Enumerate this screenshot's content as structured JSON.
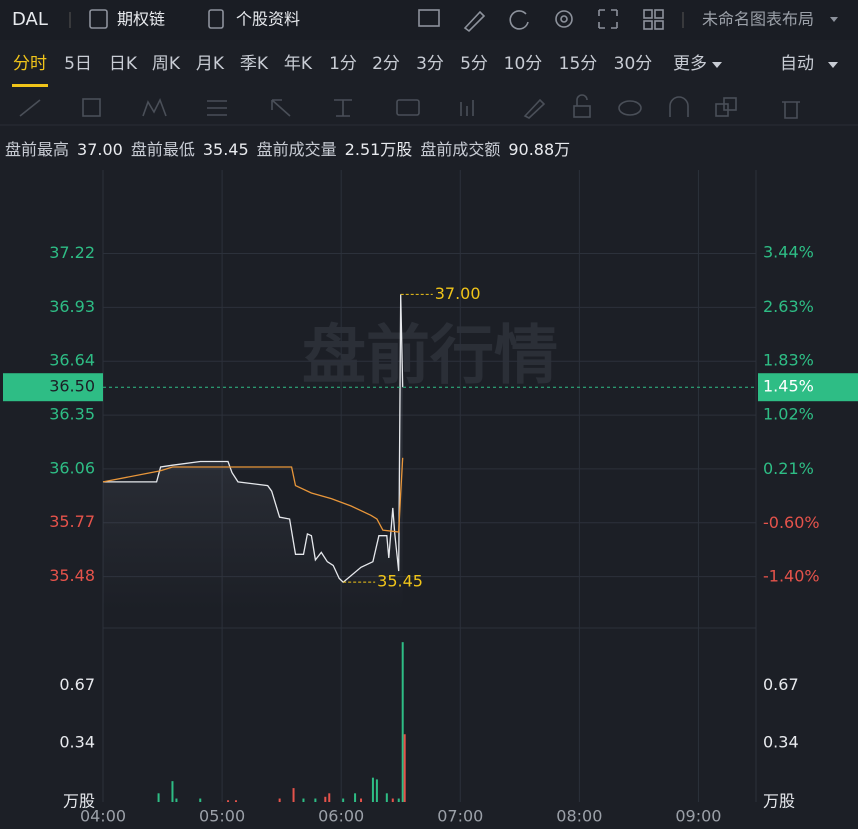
{
  "header": {
    "symbol": "DAL",
    "links": [
      "期权链",
      "个股资料"
    ],
    "layout_name": "未命名图表布局"
  },
  "tabs": {
    "items": [
      "分时",
      "5日",
      "日K",
      "周K",
      "月K",
      "季K",
      "年K",
      "1分",
      "2分",
      "3分",
      "5分",
      "10分",
      "15分",
      "30分",
      "更多"
    ],
    "active": 0,
    "mode": "自动"
  },
  "stats": [
    {
      "label": "盘前最高",
      "value": "37.00"
    },
    {
      "label": "盘前最低",
      "value": "35.45"
    },
    {
      "label": "盘前成交量",
      "value": "2.51万股"
    },
    {
      "label": "盘前成交额",
      "value": "90.88万"
    }
  ],
  "chart": {
    "watermark": "盘前行情",
    "xlim": [
      "04:00",
      "09:29"
    ],
    "xticks": [
      "04:00",
      "05:00",
      "06:00",
      "07:00",
      "08:00",
      "09:00"
    ],
    "ylim": [
      35.3,
      37.67
    ],
    "yticks": [
      37.22,
      36.93,
      36.64,
      36.35,
      36.06,
      35.77,
      35.48
    ],
    "y2lim": [
      -1.89,
      4.68
    ],
    "y2ticks": [
      {
        "value": 3.44,
        "label": "3.44%"
      },
      {
        "value": 2.63,
        "label": "2.63%"
      },
      {
        "value": 1.83,
        "label": "1.83%"
      },
      {
        "value": 1.02,
        "label": "1.02%"
      },
      {
        "value": 0.21,
        "label": "0.21%"
      },
      {
        "value": -0.6,
        "label": "-0.60%"
      },
      {
        "value": -1.4,
        "label": "-1.40%"
      }
    ],
    "grid": true,
    "up_color": "#2ebd85",
    "down_color": "#e5534b",
    "current": {
      "value": 36.5,
      "label": "36.50",
      "change": {
        "value": 1.45,
        "label": "1.45%"
      }
    },
    "series": [
      {
        "color": "#e6e8ec",
        "x": [
          "04:00",
          "04:27",
          "04:29",
          "04:35",
          "04:49",
          "05:03",
          "05:05",
          "05:08",
          "05:23",
          "05:25",
          "05:29",
          "05:34",
          "05:37",
          "05:41",
          "05:43",
          "05:45",
          "05:47",
          "05:50",
          "05:53",
          "05:56",
          "05:59",
          "06:01",
          "06:10",
          "06:16",
          "06:19",
          "06:23",
          "06:24",
          "06:26",
          "06:27",
          "06:29",
          "06:30",
          "06:31"
        ],
        "values": [
          35.99,
          35.99,
          36.07,
          36.08,
          36.1,
          36.1,
          36.04,
          35.99,
          35.97,
          35.94,
          35.8,
          35.79,
          35.6,
          35.6,
          35.71,
          35.7,
          35.57,
          35.61,
          35.56,
          35.54,
          35.47,
          35.45,
          35.53,
          35.56,
          35.7,
          35.7,
          35.58,
          35.85,
          35.71,
          35.51,
          37.0,
          36.5
        ]
      },
      {
        "color": "#e8963a",
        "x": [
          "04:00",
          "04:29",
          "04:35",
          "05:35",
          "05:37",
          "05:45",
          "05:55",
          "06:05",
          "06:15",
          "06:18",
          "06:21",
          "06:29",
          "06:30",
          "06:31"
        ],
        "values": [
          35.99,
          36.05,
          36.07,
          36.07,
          35.97,
          35.93,
          35.9,
          35.86,
          35.81,
          35.79,
          35.73,
          35.72,
          35.93,
          36.12
        ]
      }
    ],
    "annotations": [
      {
        "x": "06:30",
        "value": 37.0,
        "label": "37.00"
      },
      {
        "x": "06:01",
        "value": 35.45,
        "label": "35.45"
      }
    ],
    "volume": {
      "unit": "万股",
      "vlim": [
        0,
        0.99
      ],
      "vticks": [
        0.67,
        0.34
      ],
      "x": [
        "04:28",
        "04:35",
        "04:37",
        "04:49",
        "05:03",
        "05:07",
        "05:29",
        "05:36",
        "05:41",
        "05:47",
        "05:52",
        "05:54",
        "06:01",
        "06:07",
        "06:10",
        "06:16",
        "06:18",
        "06:23",
        "06:26",
        "06:29",
        "06:31",
        "06:32"
      ],
      "values": [
        0.05,
        0.12,
        0.02,
        0.02,
        0.01,
        0.01,
        0.02,
        0.08,
        0.02,
        0.02,
        0.03,
        0.05,
        0.02,
        0.05,
        0.02,
        0.14,
        0.13,
        0.05,
        0.02,
        0.02,
        0.92,
        0.39
      ],
      "colors": [
        "#2ebd85",
        "#2ebd85",
        "#2ebd85",
        "#2ebd85",
        "#e5534b",
        "#e5534b",
        "#e5534b",
        "#e5534b",
        "#2ebd85",
        "#2ebd85",
        "#e5534b",
        "#e5534b",
        "#2ebd85",
        "#2ebd85",
        "#e5534b",
        "#2ebd85",
        "#2ebd85",
        "#2ebd85",
        "#e5534b",
        "#2ebd85",
        "#2ebd85",
        "#e5534b"
      ]
    }
  }
}
